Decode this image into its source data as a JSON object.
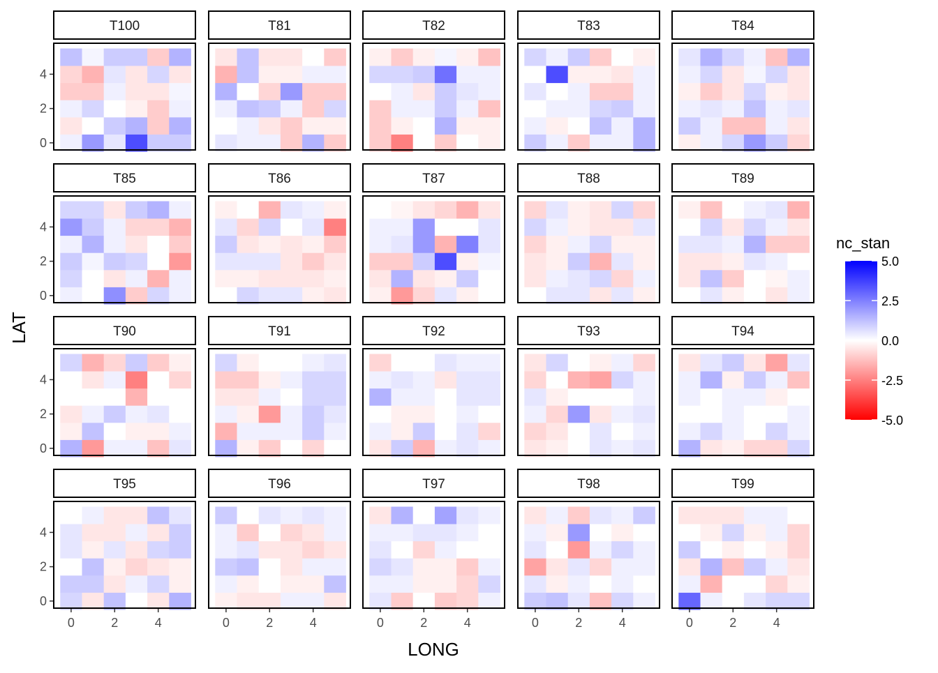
{
  "chart_data": {
    "type": "heatmap",
    "xlabel": "LONG",
    "ylabel": "LAT",
    "x": [
      0,
      1,
      2,
      3,
      4,
      5
    ],
    "y": [
      0,
      1,
      2,
      3,
      4,
      5
    ],
    "x_ticks": [
      "0",
      "2",
      "4"
    ],
    "y_ticks": [
      "0",
      "2",
      "4"
    ],
    "legend": {
      "title": "nc_stan",
      "position": "right",
      "range": [
        -5,
        5
      ],
      "ticks": [
        "5.0",
        "2.5",
        "0.0",
        "-2.5",
        "-5.0"
      ],
      "colors": {
        "low": "#ff0000",
        "mid": "#ffffff",
        "high": "#0000ff"
      }
    },
    "grid": false,
    "facets": [
      {
        "label": "T100",
        "z": [
          [
            0.3,
            2.0,
            0.5,
            3.5,
            1.0,
            1.0
          ],
          [
            -0.5,
            0.0,
            1.0,
            1.5,
            -1.0,
            1.5
          ],
          [
            0.3,
            0.8,
            0.0,
            -0.3,
            -1.0,
            0.3
          ],
          [
            -1.0,
            -1.0,
            0.3,
            -0.5,
            -0.5,
            0.2
          ],
          [
            -0.8,
            -1.5,
            0.5,
            -0.5,
            0.8,
            -0.5
          ],
          [
            1.2,
            0.2,
            1.0,
            1.0,
            -1.0,
            1.5
          ]
        ]
      },
      {
        "label": "T81",
        "z": [
          [
            0.5,
            0.3,
            0.3,
            -1.0,
            1.5,
            -1.0
          ],
          [
            0.0,
            0.3,
            -0.5,
            -1.0,
            -0.3,
            -0.3
          ],
          [
            0.3,
            1.2,
            1.0,
            0.3,
            -1.0,
            0.8
          ],
          [
            1.5,
            0.0,
            -0.8,
            2.0,
            -1.0,
            -1.0
          ],
          [
            -1.5,
            1.2,
            -0.3,
            -0.3,
            0.3,
            0.3
          ],
          [
            -0.5,
            1.2,
            -0.5,
            -0.5,
            0.0,
            -1.0
          ]
        ]
      },
      {
        "label": "T82",
        "z": [
          [
            -1.0,
            -2.5,
            0.0,
            -1.0,
            0.0,
            -0.3
          ],
          [
            -1.0,
            -0.3,
            0.0,
            1.5,
            -0.3,
            -0.3
          ],
          [
            -1.0,
            0.3,
            0.3,
            1.0,
            0.3,
            -1.2
          ],
          [
            0.0,
            0.3,
            -0.5,
            1.0,
            0.5,
            0.3
          ],
          [
            0.8,
            0.8,
            1.0,
            2.8,
            0.3,
            0.3
          ],
          [
            -0.3,
            -1.0,
            -0.3,
            0.2,
            -0.3,
            -1.2
          ]
        ]
      },
      {
        "label": "T83",
        "z": [
          [
            1.0,
            0.3,
            -1.0,
            0.3,
            0.3,
            1.5
          ],
          [
            0.3,
            -0.3,
            0.0,
            1.2,
            0.3,
            1.5
          ],
          [
            0.0,
            0.3,
            0.3,
            0.8,
            1.0,
            0.3
          ],
          [
            0.5,
            0.0,
            0.3,
            -1.0,
            -1.0,
            0.3
          ],
          [
            0.0,
            3.5,
            -0.3,
            -0.3,
            -0.5,
            0.3
          ],
          [
            0.8,
            0.3,
            1.0,
            -1.0,
            0.0,
            -0.3
          ]
        ]
      },
      {
        "label": "T84",
        "z": [
          [
            -0.3,
            0.3,
            0.8,
            2.0,
            1.0,
            -0.8
          ],
          [
            1.0,
            0.3,
            -1.2,
            -1.2,
            0.3,
            -0.5
          ],
          [
            0.3,
            0.5,
            0.3,
            1.2,
            0.3,
            0.5
          ],
          [
            -0.3,
            -1.0,
            -0.5,
            0.8,
            -0.3,
            -0.5
          ],
          [
            0.3,
            0.8,
            -0.5,
            0.2,
            0.8,
            -0.5
          ],
          [
            0.5,
            1.5,
            0.8,
            0.3,
            -1.2,
            1.5
          ]
        ]
      },
      {
        "label": "T85",
        "z": [
          [
            0.3,
            0.0,
            2.2,
            -1.0,
            0.8,
            0.3
          ],
          [
            0.8,
            0.0,
            -0.5,
            0.3,
            -1.5,
            0.3
          ],
          [
            1.0,
            0.2,
            1.0,
            0.8,
            0.0,
            -2.0
          ],
          [
            0.3,
            1.5,
            0.3,
            -0.5,
            0.0,
            -1.0
          ],
          [
            2.0,
            1.0,
            0.3,
            -0.8,
            -0.8,
            -1.5
          ],
          [
            0.8,
            0.8,
            -0.5,
            1.0,
            1.5,
            0.3
          ]
        ]
      },
      {
        "label": "T86",
        "z": [
          [
            0.0,
            0.8,
            0.5,
            0.5,
            -0.3,
            -0.5
          ],
          [
            -0.3,
            -0.3,
            -0.5,
            -0.5,
            -0.5,
            -0.3
          ],
          [
            0.5,
            0.5,
            0.5,
            -0.5,
            -1.0,
            -0.5
          ],
          [
            1.0,
            -0.5,
            -0.3,
            -0.5,
            -0.3,
            -1.0
          ],
          [
            0.5,
            -0.8,
            0.8,
            0.0,
            0.5,
            -2.5
          ],
          [
            -0.3,
            0.0,
            -1.5,
            0.5,
            0.3,
            -0.3
          ]
        ]
      },
      {
        "label": "T87",
        "z": [
          [
            -0.3,
            -2.0,
            -0.8,
            0.5,
            -0.3,
            0.0
          ],
          [
            -0.5,
            1.5,
            -0.5,
            -0.3,
            1.0,
            0.0
          ],
          [
            -1.0,
            -1.0,
            1.0,
            3.5,
            -0.3,
            0.2
          ],
          [
            0.3,
            0.5,
            2.0,
            -1.5,
            2.5,
            0.5
          ],
          [
            0.3,
            0.3,
            2.0,
            0.0,
            0.0,
            0.5
          ],
          [
            0.0,
            -0.2,
            -0.5,
            -0.8,
            -1.5,
            -0.5
          ]
        ]
      },
      {
        "label": "T88",
        "z": [
          [
            0.0,
            0.5,
            0.5,
            -0.5,
            0.5,
            -0.3
          ],
          [
            -0.5,
            0.3,
            0.5,
            0.8,
            -0.8,
            0.3
          ],
          [
            -0.5,
            -0.3,
            1.0,
            -1.5,
            0.5,
            -0.3
          ],
          [
            -0.8,
            -0.3,
            0.3,
            0.8,
            -0.3,
            -0.3
          ],
          [
            0.8,
            0.3,
            -0.3,
            -0.5,
            -0.5,
            0.5
          ],
          [
            -0.8,
            0.5,
            -0.3,
            -0.5,
            0.8,
            -0.8
          ]
        ]
      },
      {
        "label": "T89",
        "z": [
          [
            0.0,
            0.5,
            -0.3,
            0.0,
            -0.5,
            0.3
          ],
          [
            -0.5,
            1.2,
            -1.0,
            0.0,
            -0.2,
            0.3
          ],
          [
            -0.5,
            -0.5,
            -0.3,
            0.5,
            0.3,
            0.0
          ],
          [
            0.5,
            0.5,
            0.3,
            1.5,
            -1.0,
            -1.0
          ],
          [
            0.0,
            0.8,
            -0.5,
            0.8,
            0.3,
            -0.5
          ],
          [
            -0.3,
            -1.2,
            0.0,
            0.3,
            0.5,
            -1.5
          ]
        ]
      },
      {
        "label": "T90",
        "z": [
          [
            1.5,
            -2.0,
            0.3,
            0.3,
            -1.2,
            0.5
          ],
          [
            -0.3,
            1.2,
            0.0,
            -0.3,
            -0.3,
            0.3
          ],
          [
            -0.5,
            0.3,
            1.0,
            0.3,
            0.5,
            0.0
          ],
          [
            0.0,
            0.0,
            0.0,
            -1.5,
            0.0,
            0.0
          ],
          [
            0.0,
            -0.5,
            0.3,
            -2.5,
            0.0,
            -0.8
          ],
          [
            0.8,
            -1.5,
            -0.8,
            1.0,
            -1.0,
            -0.3
          ]
        ]
      },
      {
        "label": "T91",
        "z": [
          [
            1.5,
            -0.3,
            -1.0,
            0.0,
            -0.8,
            0.0
          ],
          [
            -1.5,
            0.3,
            0.3,
            0.3,
            1.0,
            0.3
          ],
          [
            0.3,
            -0.3,
            -2.0,
            0.3,
            1.0,
            0.5
          ],
          [
            -0.5,
            -0.5,
            0.3,
            0.0,
            0.8,
            0.8
          ],
          [
            -1.0,
            -1.0,
            -0.3,
            0.3,
            0.8,
            0.8
          ],
          [
            0.8,
            -0.3,
            0.0,
            0.0,
            0.3,
            0.5
          ]
        ]
      },
      {
        "label": "T92",
        "z": [
          [
            -0.5,
            1.0,
            -1.5,
            0.3,
            0.5,
            0.3
          ],
          [
            0.3,
            -0.3,
            1.0,
            0.0,
            0.5,
            -0.8
          ],
          [
            0.0,
            -0.3,
            -0.3,
            0.0,
            0.3,
            0.0
          ],
          [
            1.5,
            0.3,
            0.3,
            0.0,
            0.5,
            0.5
          ],
          [
            0.3,
            0.5,
            0.3,
            -0.5,
            0.5,
            0.5
          ],
          [
            -0.8,
            0.0,
            0.0,
            0.5,
            0.3,
            0.3
          ]
        ]
      },
      {
        "label": "T93",
        "z": [
          [
            -0.5,
            -0.3,
            0.0,
            0.5,
            0.3,
            0.5
          ],
          [
            -0.8,
            -0.5,
            0.0,
            0.5,
            0.0,
            0.3
          ],
          [
            0.3,
            -0.8,
            2.0,
            -0.5,
            0.3,
            0.5
          ],
          [
            0.5,
            -0.3,
            0.0,
            0.0,
            0.0,
            0.3
          ],
          [
            -0.8,
            0.0,
            -1.5,
            -1.8,
            0.8,
            0.3
          ],
          [
            -0.5,
            0.8,
            0.0,
            -0.3,
            0.3,
            -0.8
          ]
        ]
      },
      {
        "label": "T94",
        "z": [
          [
            1.5,
            -0.5,
            -0.3,
            -0.8,
            -0.8,
            0.8
          ],
          [
            0.3,
            0.8,
            0.3,
            0.0,
            0.8,
            0.3
          ],
          [
            0.0,
            0.0,
            0.3,
            0.0,
            0.0,
            0.3
          ],
          [
            0.3,
            0.0,
            0.3,
            0.3,
            -0.3,
            0.0
          ],
          [
            0.3,
            1.5,
            -0.3,
            1.0,
            0.3,
            -1.2
          ],
          [
            -0.5,
            0.5,
            1.0,
            -0.5,
            -1.8,
            0.5
          ]
        ]
      },
      {
        "label": "T95",
        "z": [
          [
            0.8,
            -0.5,
            1.2,
            0.0,
            -0.5,
            1.5
          ],
          [
            1.0,
            1.0,
            -0.5,
            0.3,
            0.8,
            -0.3
          ],
          [
            0.0,
            1.2,
            -0.3,
            -0.8,
            -0.5,
            -0.3
          ],
          [
            0.5,
            -0.3,
            0.5,
            -0.5,
            0.8,
            1.0
          ],
          [
            0.5,
            -0.5,
            -0.5,
            0.3,
            -0.5,
            1.0
          ],
          [
            0.0,
            0.3,
            -0.5,
            -0.5,
            1.2,
            0.5
          ]
        ]
      },
      {
        "label": "T96",
        "z": [
          [
            -0.3,
            -0.5,
            -0.5,
            0.3,
            0.3,
            -0.5
          ],
          [
            0.3,
            -0.3,
            0.0,
            -0.3,
            -0.3,
            1.2
          ],
          [
            1.0,
            1.2,
            0.0,
            -0.5,
            0.3,
            0.3
          ],
          [
            0.3,
            0.5,
            -0.5,
            -0.5,
            -0.8,
            -0.5
          ],
          [
            0.3,
            -1.0,
            0.0,
            -0.8,
            -0.5,
            0.3
          ],
          [
            1.0,
            0.0,
            0.5,
            0.3,
            0.5,
            0.3
          ]
        ]
      },
      {
        "label": "T97",
        "z": [
          [
            0.5,
            -1.0,
            0.0,
            -1.0,
            -0.8,
            0.3
          ],
          [
            0.3,
            0.3,
            -0.3,
            -0.3,
            -0.8,
            0.8
          ],
          [
            0.8,
            0.5,
            -0.3,
            -0.3,
            -1.0,
            0.3
          ],
          [
            0.5,
            0.0,
            -0.8,
            0.3,
            0.0,
            0.0
          ],
          [
            0.3,
            0.3,
            0.5,
            0.5,
            0.3,
            0.0
          ],
          [
            -0.5,
            1.5,
            0.0,
            1.8,
            0.5,
            0.3
          ]
        ]
      },
      {
        "label": "T98",
        "z": [
          [
            1.0,
            1.2,
            0.5,
            -1.2,
            0.8,
            0.3
          ],
          [
            0.5,
            -0.3,
            0.3,
            0.0,
            0.3,
            0.0
          ],
          [
            -1.8,
            -0.5,
            0.5,
            -0.8,
            0.3,
            0.3
          ],
          [
            0.5,
            0.0,
            -2.0,
            0.3,
            0.8,
            0.3
          ],
          [
            0.3,
            -0.3,
            2.0,
            0.0,
            -0.3,
            0.0
          ],
          [
            -0.5,
            0.3,
            -1.0,
            0.5,
            0.3,
            1.0
          ]
        ]
      },
      {
        "label": "T99",
        "z": [
          [
            3.0,
            0.3,
            0.0,
            0.5,
            0.8,
            0.8
          ],
          [
            0.3,
            -1.5,
            0.0,
            0.0,
            -0.8,
            -0.3
          ],
          [
            -0.5,
            1.5,
            -1.2,
            1.0,
            0.3,
            -0.5
          ],
          [
            1.0,
            0.0,
            -0.3,
            0.0,
            -0.3,
            -0.8
          ],
          [
            0.0,
            -0.3,
            0.8,
            -0.3,
            0.3,
            -0.8
          ],
          [
            -0.5,
            -0.5,
            -0.5,
            0.3,
            0.3,
            0.0
          ]
        ]
      }
    ]
  }
}
